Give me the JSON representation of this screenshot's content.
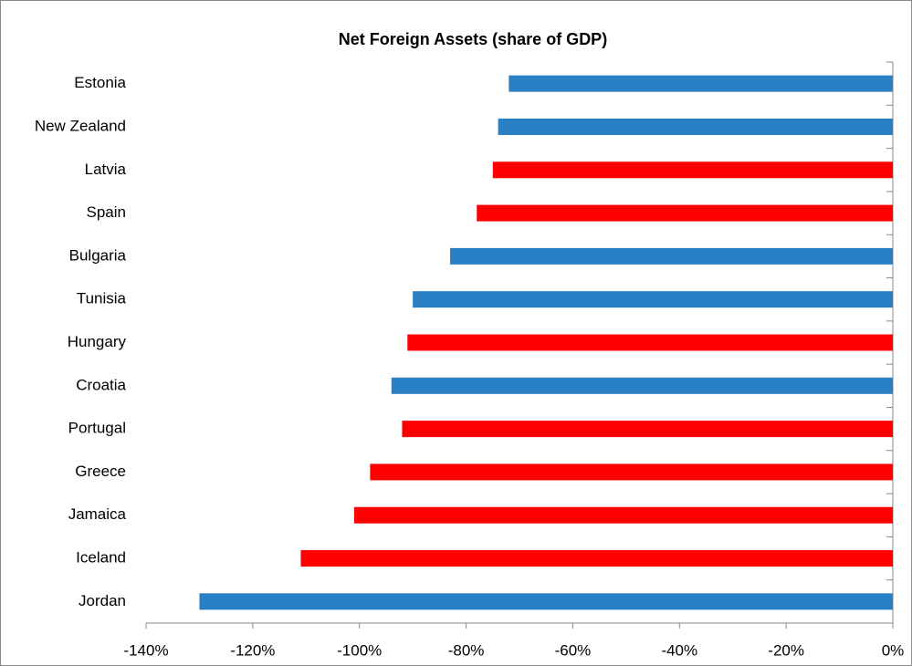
{
  "chart_data": {
    "type": "bar",
    "orientation": "horizontal",
    "title": "Net Foreign Assets (share of GDP)",
    "categories": [
      "Estonia",
      "New Zealand",
      "Latvia",
      "Spain",
      "Bulgaria",
      "Tunisia",
      "Hungary",
      "Croatia",
      "Portugal",
      "Greece",
      "Jamaica",
      "Iceland",
      "Jordan"
    ],
    "values": [
      -72,
      -74,
      -75,
      -78,
      -83,
      -90,
      -91,
      -94,
      -92,
      -98,
      -101,
      -111,
      -130
    ],
    "colors": [
      "#2a80c5",
      "#2a80c5",
      "#ff0000",
      "#ff0000",
      "#2a80c5",
      "#2a80c5",
      "#ff0000",
      "#2a80c5",
      "#ff0000",
      "#ff0000",
      "#ff0000",
      "#ff0000",
      "#2a80c5"
    ],
    "xlim": [
      -140,
      0
    ],
    "xticks": [
      {
        "value": -140,
        "label": "-140%"
      },
      {
        "value": -120,
        "label": "-120%"
      },
      {
        "value": -100,
        "label": "-100%"
      },
      {
        "value": -80,
        "label": "-80%"
      },
      {
        "value": -60,
        "label": "-60%"
      },
      {
        "value": -40,
        "label": "-40%"
      },
      {
        "value": -20,
        "label": "-20%"
      },
      {
        "value": 0,
        "label": "0%"
      }
    ],
    "grid": false
  }
}
